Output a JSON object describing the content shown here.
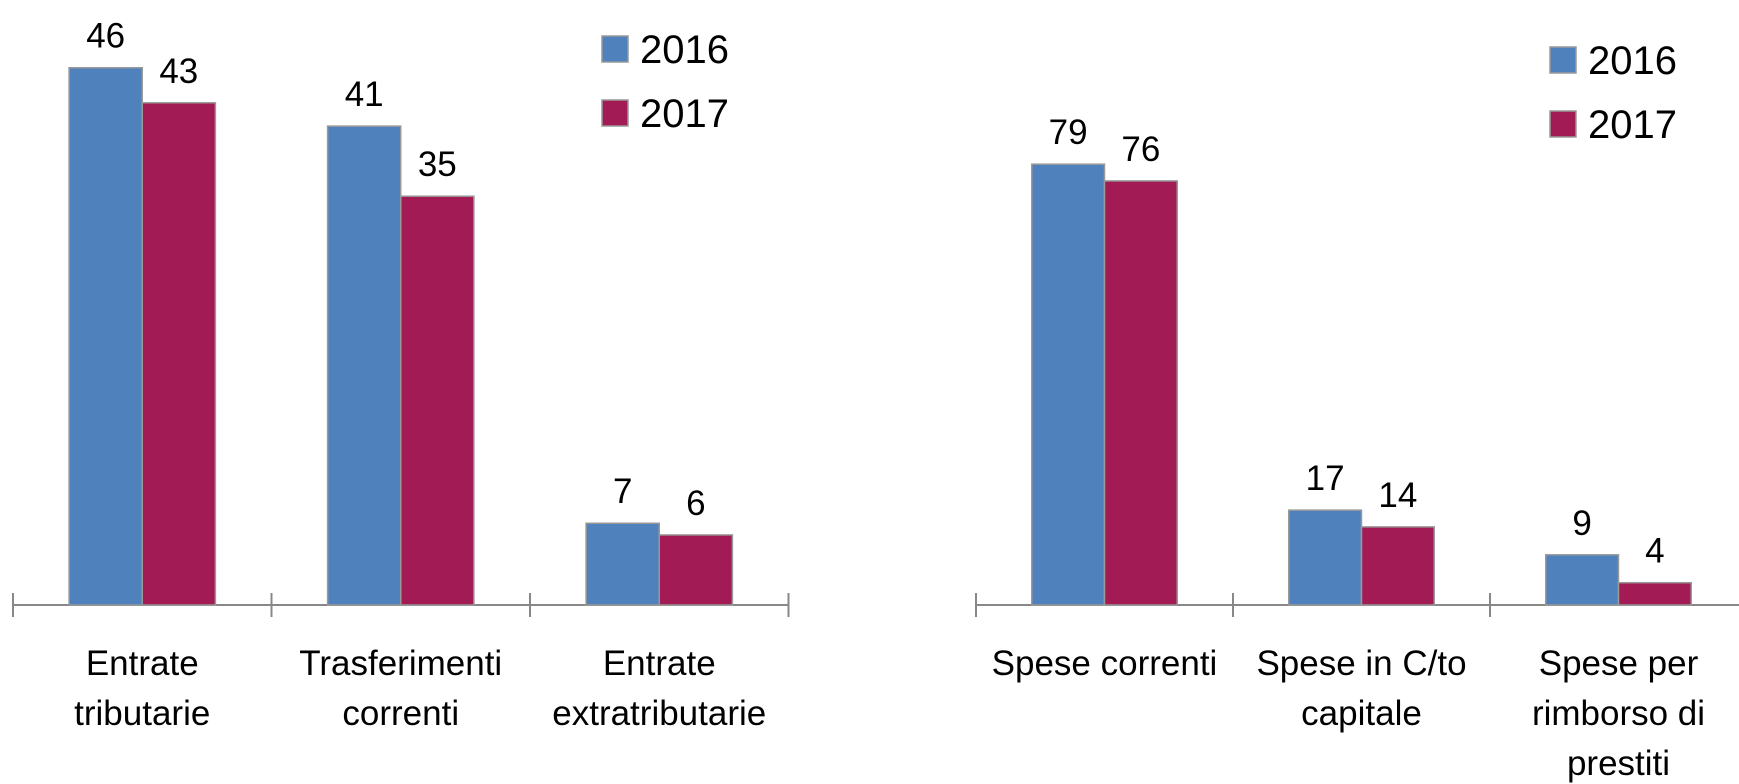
{
  "chart_data": [
    {
      "type": "bar",
      "categories": [
        [
          "Entrate",
          "tributarie"
        ],
        [
          "Trasferimenti",
          "correnti"
        ],
        [
          "Entrate",
          "extratributarie"
        ]
      ],
      "series": [
        {
          "name": "2016",
          "color": "#4f81bd",
          "values": [
            46,
            41,
            7
          ]
        },
        {
          "name": "2017",
          "color": "#a21b55",
          "values": [
            43,
            35,
            6
          ]
        }
      ],
      "ylim": [
        0,
        50
      ]
    },
    {
      "type": "bar",
      "categories": [
        [
          "Spese correnti"
        ],
        [
          "Spese in C/to",
          "capitale"
        ],
        [
          "Spese per",
          "rimborso di",
          "prestiti"
        ]
      ],
      "series": [
        {
          "name": "2016",
          "color": "#4f81bd",
          "values": [
            79,
            17,
            9
          ]
        },
        {
          "name": "2017",
          "color": "#a21b55",
          "values": [
            76,
            14,
            4
          ]
        }
      ],
      "ylim": [
        0,
        100
      ]
    }
  ]
}
